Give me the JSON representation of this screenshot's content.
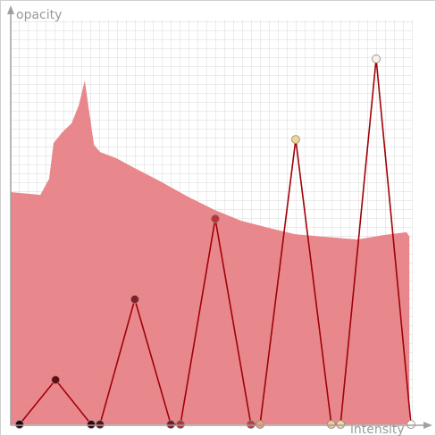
{
  "chart_data": {
    "type": "transfer-function",
    "ylabel": "opacity",
    "xlabel": "intensity",
    "xlim": [
      0,
      1
    ],
    "ylim": [
      0,
      1
    ],
    "x": [
      0.022,
      0.112,
      0.201,
      0.223,
      0.31,
      0.4,
      0.424,
      0.511,
      0.6,
      0.623,
      0.712,
      0.801,
      0.824,
      0.913,
      1.0
    ],
    "values": [
      0,
      0.11,
      0,
      0,
      0.309,
      0,
      0,
      0.508,
      0,
      0,
      0.704,
      0,
      0,
      0.903,
      0
    ],
    "point_colors": [
      "#2a0006",
      "#6a0a10",
      "#3a0008",
      "#5a1018",
      "#8b1a22",
      "#7a1a20",
      "#b03535",
      "#c03035",
      "#b84040",
      "#e8a080",
      "#f0d494",
      "#f0c890",
      "#f0d4a8",
      "#f7f2e2",
      "#fffff4"
    ],
    "line_color": "#a00008",
    "histogram": {
      "color": "#e88286",
      "x": [
        0,
        0.074,
        0.096,
        0.107,
        0.129,
        0.152,
        0.17,
        0.185,
        0.196,
        0.208,
        0.223,
        0.263,
        0.308,
        0.375,
        0.442,
        0.509,
        0.576,
        0.643,
        0.71,
        0.777,
        0.866,
        0.933,
        0.989,
        0.996
      ],
      "values": [
        0.574,
        0.567,
        0.607,
        0.695,
        0.722,
        0.744,
        0.788,
        0.85,
        0.773,
        0.691,
        0.673,
        0.658,
        0.634,
        0.6,
        0.563,
        0.53,
        0.503,
        0.486,
        0.47,
        0.464,
        0.457,
        0.468,
        0.475,
        0.464
      ]
    }
  }
}
